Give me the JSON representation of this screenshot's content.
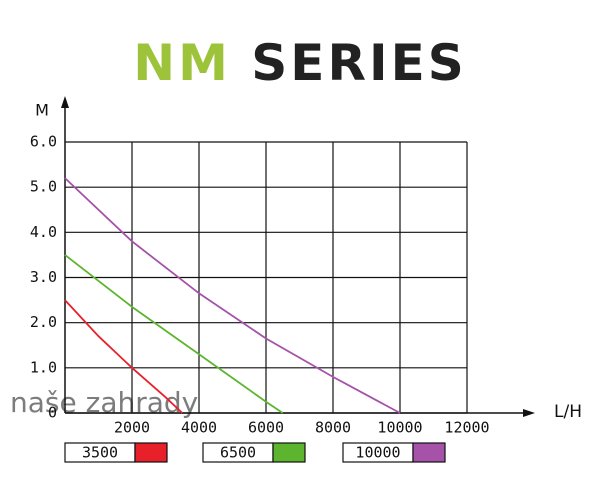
{
  "chart_data": {
    "type": "line",
    "title": [
      "NM",
      "SERIES"
    ],
    "title_colors": [
      "#9dc33b",
      "#222222"
    ],
    "y_label": "M",
    "x_label": "L/H",
    "watermark": "naše zahrady",
    "xlim": [
      0,
      12000
    ],
    "ylim": [
      0,
      6
    ],
    "xticks": [
      2000,
      4000,
      6000,
      8000,
      10000,
      12000
    ],
    "yticks": [
      0,
      {
        "value": 1,
        "label": "1.0"
      },
      {
        "value": 2,
        "label": "2.0"
      },
      {
        "value": 3,
        "label": "3.0"
      },
      {
        "value": 4,
        "label": "4.0"
      },
      {
        "value": 5,
        "label": "5.0"
      },
      {
        "value": 6,
        "label": "6.0"
      }
    ],
    "grid": true,
    "series": [
      {
        "name": "3500",
        "color": "#e8202a",
        "x": [
          0,
          1000,
          2000,
          3000,
          3500
        ],
        "values": [
          2.5,
          1.7,
          1.0,
          0.35,
          0
        ]
      },
      {
        "name": "6500",
        "color": "#5db52f",
        "x": [
          0,
          2000,
          4000,
          6000,
          6500
        ],
        "values": [
          3.5,
          2.35,
          1.3,
          0.25,
          0
        ]
      },
      {
        "name": "10000",
        "color": "#a552a8",
        "x": [
          0,
          2000,
          4000,
          6000,
          8000,
          10000
        ],
        "values": [
          5.2,
          3.8,
          2.65,
          1.65,
          0.8,
          0
        ]
      }
    ]
  }
}
